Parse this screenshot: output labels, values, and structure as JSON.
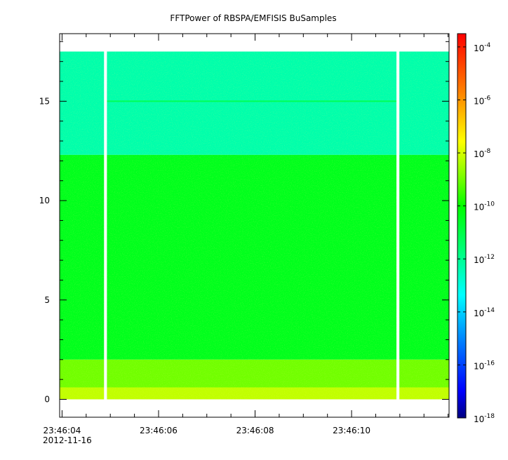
{
  "chart_data": {
    "type": "heatmap",
    "title": "FFTPower of RBSPA/EMFISIS  BuSamples",
    "xlabel": "",
    "ylabel": "",
    "x_ticks": [
      "23:46:04",
      "23:46:06",
      "23:46:08",
      "23:46:10"
    ],
    "x_tick_seconds": [
      4,
      6,
      8,
      10
    ],
    "x_range_seconds": [
      3.95,
      12.02
    ],
    "date_label": "2012-11-16",
    "y_ticks": [
      "0",
      "5",
      "10",
      "15"
    ],
    "y_tick_values": [
      0,
      5,
      10,
      15
    ],
    "ylim": [
      -0.9,
      18.4
    ],
    "data_y_max": 17.5,
    "data_gaps_seconds": [
      [
        4.87,
        4.93
      ],
      [
        10.93,
        10.99
      ]
    ],
    "bands": [
      {
        "y_from": 12.3,
        "y_to": 17.5,
        "log_power": -12.3
      },
      {
        "y_from": 2.0,
        "y_to": 12.3,
        "log_power": -10.4
      },
      {
        "y_from": 0.6,
        "y_to": 2.0,
        "log_power": -9.0
      },
      {
        "y_from": 0.0,
        "y_to": 0.6,
        "log_power": -8.2
      }
    ],
    "narrowband_line": {
      "y": 15.0,
      "x_range_seconds": [
        4.93,
        10.93
      ],
      "log_power": -11.2
    },
    "colorbar": {
      "scale": "log",
      "range_exponent": [
        -18,
        -3.5
      ],
      "ticks": [
        {
          "base": "10",
          "exp": "-4",
          "value_exponent": -4
        },
        {
          "base": "10",
          "exp": "-6",
          "value_exponent": -6
        },
        {
          "base": "10",
          "exp": "-8",
          "value_exponent": -8
        },
        {
          "base": "10",
          "exp": "-10",
          "value_exponent": -10
        },
        {
          "base": "10",
          "exp": "-12",
          "value_exponent": -12
        },
        {
          "base": "10",
          "exp": "-14",
          "value_exponent": -14
        },
        {
          "base": "10",
          "exp": "-16",
          "value_exponent": -16
        },
        {
          "base": "10",
          "exp": "-18",
          "value_exponent": -18
        }
      ],
      "colors": [
        "#000080",
        "#0000ff",
        "#0080ff",
        "#00ffff",
        "#00ff80",
        "#00ff00",
        "#80ff00",
        "#ffff00",
        "#ff8000",
        "#ff0000"
      ]
    },
    "grid": false,
    "legend": "none"
  }
}
